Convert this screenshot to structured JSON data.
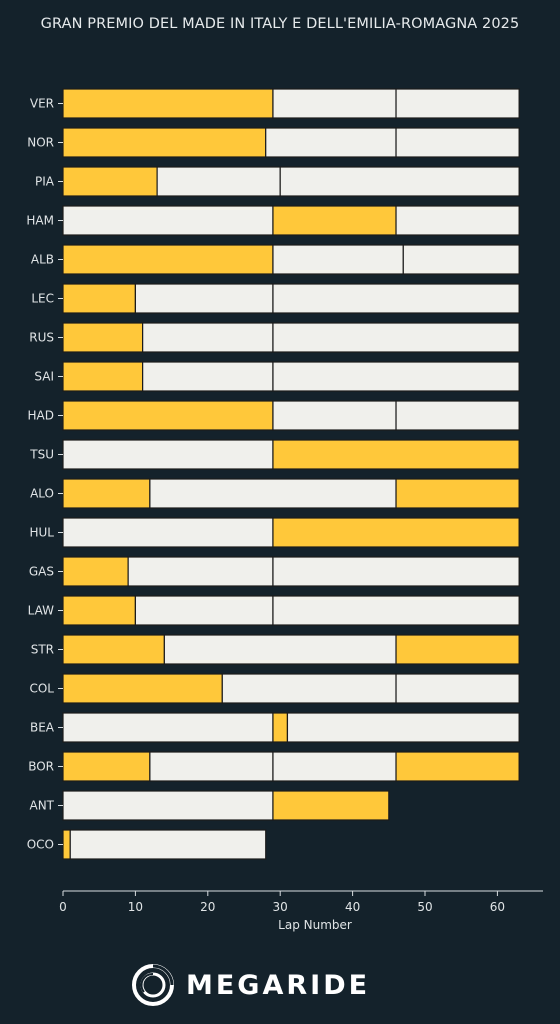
{
  "chart_data": {
    "type": "bar",
    "orientation": "horizontal-stacked",
    "title": "GRAN PREMIO DEL MADE IN ITALY E DELL'EMILIA-ROMAGNA 2025",
    "xlabel": "Lap Number",
    "ylabel": "",
    "xlim": [
      0,
      67
    ],
    "xticks": [
      0,
      10,
      20,
      30,
      40,
      50,
      60
    ],
    "grid": false,
    "legend": "none",
    "colors": {
      "MEDIUM": "#ffc83a",
      "HARD": "#f0f0ec",
      "edge": "#1b1b1b"
    },
    "drivers": [
      {
        "driver": "VER",
        "stints": [
          {
            "compound": "MEDIUM",
            "start": 0,
            "end": 29
          },
          {
            "compound": "HARD",
            "start": 29,
            "end": 46
          },
          {
            "compound": "HARD",
            "start": 46,
            "end": 63
          }
        ]
      },
      {
        "driver": "NOR",
        "stints": [
          {
            "compound": "MEDIUM",
            "start": 0,
            "end": 28
          },
          {
            "compound": "HARD",
            "start": 28,
            "end": 46
          },
          {
            "compound": "HARD",
            "start": 46,
            "end": 63
          }
        ]
      },
      {
        "driver": "PIA",
        "stints": [
          {
            "compound": "MEDIUM",
            "start": 0,
            "end": 13
          },
          {
            "compound": "HARD",
            "start": 13,
            "end": 30
          },
          {
            "compound": "HARD",
            "start": 30,
            "end": 63
          }
        ]
      },
      {
        "driver": "HAM",
        "stints": [
          {
            "compound": "HARD",
            "start": 0,
            "end": 29
          },
          {
            "compound": "MEDIUM",
            "start": 29,
            "end": 46
          },
          {
            "compound": "HARD",
            "start": 46,
            "end": 63
          }
        ]
      },
      {
        "driver": "ALB",
        "stints": [
          {
            "compound": "MEDIUM",
            "start": 0,
            "end": 29
          },
          {
            "compound": "HARD",
            "start": 29,
            "end": 47
          },
          {
            "compound": "HARD",
            "start": 47,
            "end": 63
          }
        ]
      },
      {
        "driver": "LEC",
        "stints": [
          {
            "compound": "MEDIUM",
            "start": 0,
            "end": 10
          },
          {
            "compound": "HARD",
            "start": 10,
            "end": 29
          },
          {
            "compound": "HARD",
            "start": 29,
            "end": 63
          }
        ]
      },
      {
        "driver": "RUS",
        "stints": [
          {
            "compound": "MEDIUM",
            "start": 0,
            "end": 11
          },
          {
            "compound": "HARD",
            "start": 11,
            "end": 29
          },
          {
            "compound": "HARD",
            "start": 29,
            "end": 63
          }
        ]
      },
      {
        "driver": "SAI",
        "stints": [
          {
            "compound": "MEDIUM",
            "start": 0,
            "end": 11
          },
          {
            "compound": "HARD",
            "start": 11,
            "end": 29
          },
          {
            "compound": "HARD",
            "start": 29,
            "end": 63
          }
        ]
      },
      {
        "driver": "HAD",
        "stints": [
          {
            "compound": "MEDIUM",
            "start": 0,
            "end": 29
          },
          {
            "compound": "HARD",
            "start": 29,
            "end": 46
          },
          {
            "compound": "HARD",
            "start": 46,
            "end": 63
          }
        ]
      },
      {
        "driver": "TSU",
        "stints": [
          {
            "compound": "HARD",
            "start": 0,
            "end": 29
          },
          {
            "compound": "MEDIUM",
            "start": 29,
            "end": 63
          }
        ]
      },
      {
        "driver": "ALO",
        "stints": [
          {
            "compound": "MEDIUM",
            "start": 0,
            "end": 12
          },
          {
            "compound": "HARD",
            "start": 12,
            "end": 46
          },
          {
            "compound": "MEDIUM",
            "start": 46,
            "end": 63
          }
        ]
      },
      {
        "driver": "HUL",
        "stints": [
          {
            "compound": "HARD",
            "start": 0,
            "end": 29
          },
          {
            "compound": "MEDIUM",
            "start": 29,
            "end": 63
          }
        ]
      },
      {
        "driver": "GAS",
        "stints": [
          {
            "compound": "MEDIUM",
            "start": 0,
            "end": 9
          },
          {
            "compound": "HARD",
            "start": 9,
            "end": 29
          },
          {
            "compound": "HARD",
            "start": 29,
            "end": 63
          }
        ]
      },
      {
        "driver": "LAW",
        "stints": [
          {
            "compound": "MEDIUM",
            "start": 0,
            "end": 10
          },
          {
            "compound": "HARD",
            "start": 10,
            "end": 29
          },
          {
            "compound": "HARD",
            "start": 29,
            "end": 63
          }
        ]
      },
      {
        "driver": "STR",
        "stints": [
          {
            "compound": "MEDIUM",
            "start": 0,
            "end": 14
          },
          {
            "compound": "HARD",
            "start": 14,
            "end": 46
          },
          {
            "compound": "MEDIUM",
            "start": 46,
            "end": 63
          }
        ]
      },
      {
        "driver": "COL",
        "stints": [
          {
            "compound": "MEDIUM",
            "start": 0,
            "end": 22
          },
          {
            "compound": "HARD",
            "start": 22,
            "end": 46
          },
          {
            "compound": "HARD",
            "start": 46,
            "end": 63
          }
        ]
      },
      {
        "driver": "BEA",
        "stints": [
          {
            "compound": "HARD",
            "start": 0,
            "end": 29
          },
          {
            "compound": "MEDIUM",
            "start": 29,
            "end": 31
          },
          {
            "compound": "HARD",
            "start": 31,
            "end": 63
          }
        ]
      },
      {
        "driver": "BOR",
        "stints": [
          {
            "compound": "MEDIUM",
            "start": 0,
            "end": 12
          },
          {
            "compound": "HARD",
            "start": 12,
            "end": 29
          },
          {
            "compound": "HARD",
            "start": 29,
            "end": 46
          },
          {
            "compound": "MEDIUM",
            "start": 46,
            "end": 63
          }
        ]
      },
      {
        "driver": "ANT",
        "stints": [
          {
            "compound": "HARD",
            "start": 0,
            "end": 29
          },
          {
            "compound": "MEDIUM",
            "start": 29,
            "end": 45
          }
        ]
      },
      {
        "driver": "OCO",
        "stints": [
          {
            "compound": "MEDIUM",
            "start": 0,
            "end": 1
          },
          {
            "compound": "HARD",
            "start": 1,
            "end": 28
          }
        ]
      }
    ]
  },
  "branding": {
    "logo_text": "MEGARIDE"
  }
}
